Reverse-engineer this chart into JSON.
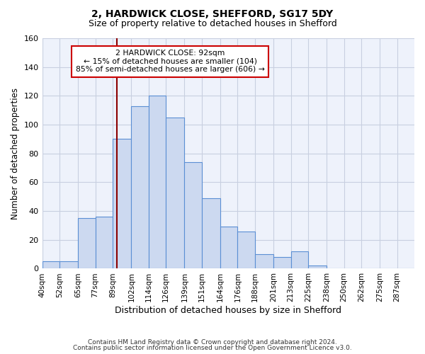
{
  "title_line1": "2, HARDWICK CLOSE, SHEFFORD, SG17 5DY",
  "title_line2": "Size of property relative to detached houses in Shefford",
  "xlabel": "Distribution of detached houses by size in Shefford",
  "ylabel": "Number of detached properties",
  "footer_line1": "Contains HM Land Registry data © Crown copyright and database right 2024.",
  "footer_line2": "Contains public sector information licensed under the Open Government Licence v3.0.",
  "bin_labels": [
    "40sqm",
    "52sqm",
    "65sqm",
    "77sqm",
    "89sqm",
    "102sqm",
    "114sqm",
    "126sqm",
    "139sqm",
    "151sqm",
    "164sqm",
    "176sqm",
    "188sqm",
    "201sqm",
    "213sqm",
    "225sqm",
    "238sqm",
    "250sqm",
    "262sqm",
    "275sqm",
    "287sqm"
  ],
  "bin_edges": [
    40,
    52,
    65,
    77,
    89,
    102,
    114,
    126,
    139,
    151,
    164,
    176,
    188,
    201,
    213,
    225,
    238,
    250,
    262,
    275,
    287
  ],
  "bar_values": [
    5,
    5,
    35,
    36,
    90,
    113,
    120,
    105,
    74,
    49,
    29,
    26,
    10,
    8,
    12,
    2,
    0,
    0,
    0,
    0
  ],
  "bar_color": "#ccd9f0",
  "bar_edge_color": "#5b8fd4",
  "grid_color": "#c8cfe0",
  "property_size": 92,
  "vline_x": 92,
  "vline_color": "#8b0000",
  "annotation_line1": "2 HARDWICK CLOSE: 92sqm",
  "annotation_line2": "← 15% of detached houses are smaller (104)",
  "annotation_line3": "85% of semi-detached houses are larger (606) →",
  "annotation_box_color": "#ffffff",
  "annotation_box_edge": "#cc0000",
  "ylim": [
    0,
    160
  ],
  "yticks": [
    0,
    20,
    40,
    60,
    80,
    100,
    120,
    140,
    160
  ],
  "background_color": "#ffffff",
  "plot_background": "#eef2fb",
  "title_fontsize": 10,
  "subtitle_fontsize": 9,
  "footer_fontsize": 6.5,
  "ylabel_fontsize": 8.5,
  "xlabel_fontsize": 9
}
